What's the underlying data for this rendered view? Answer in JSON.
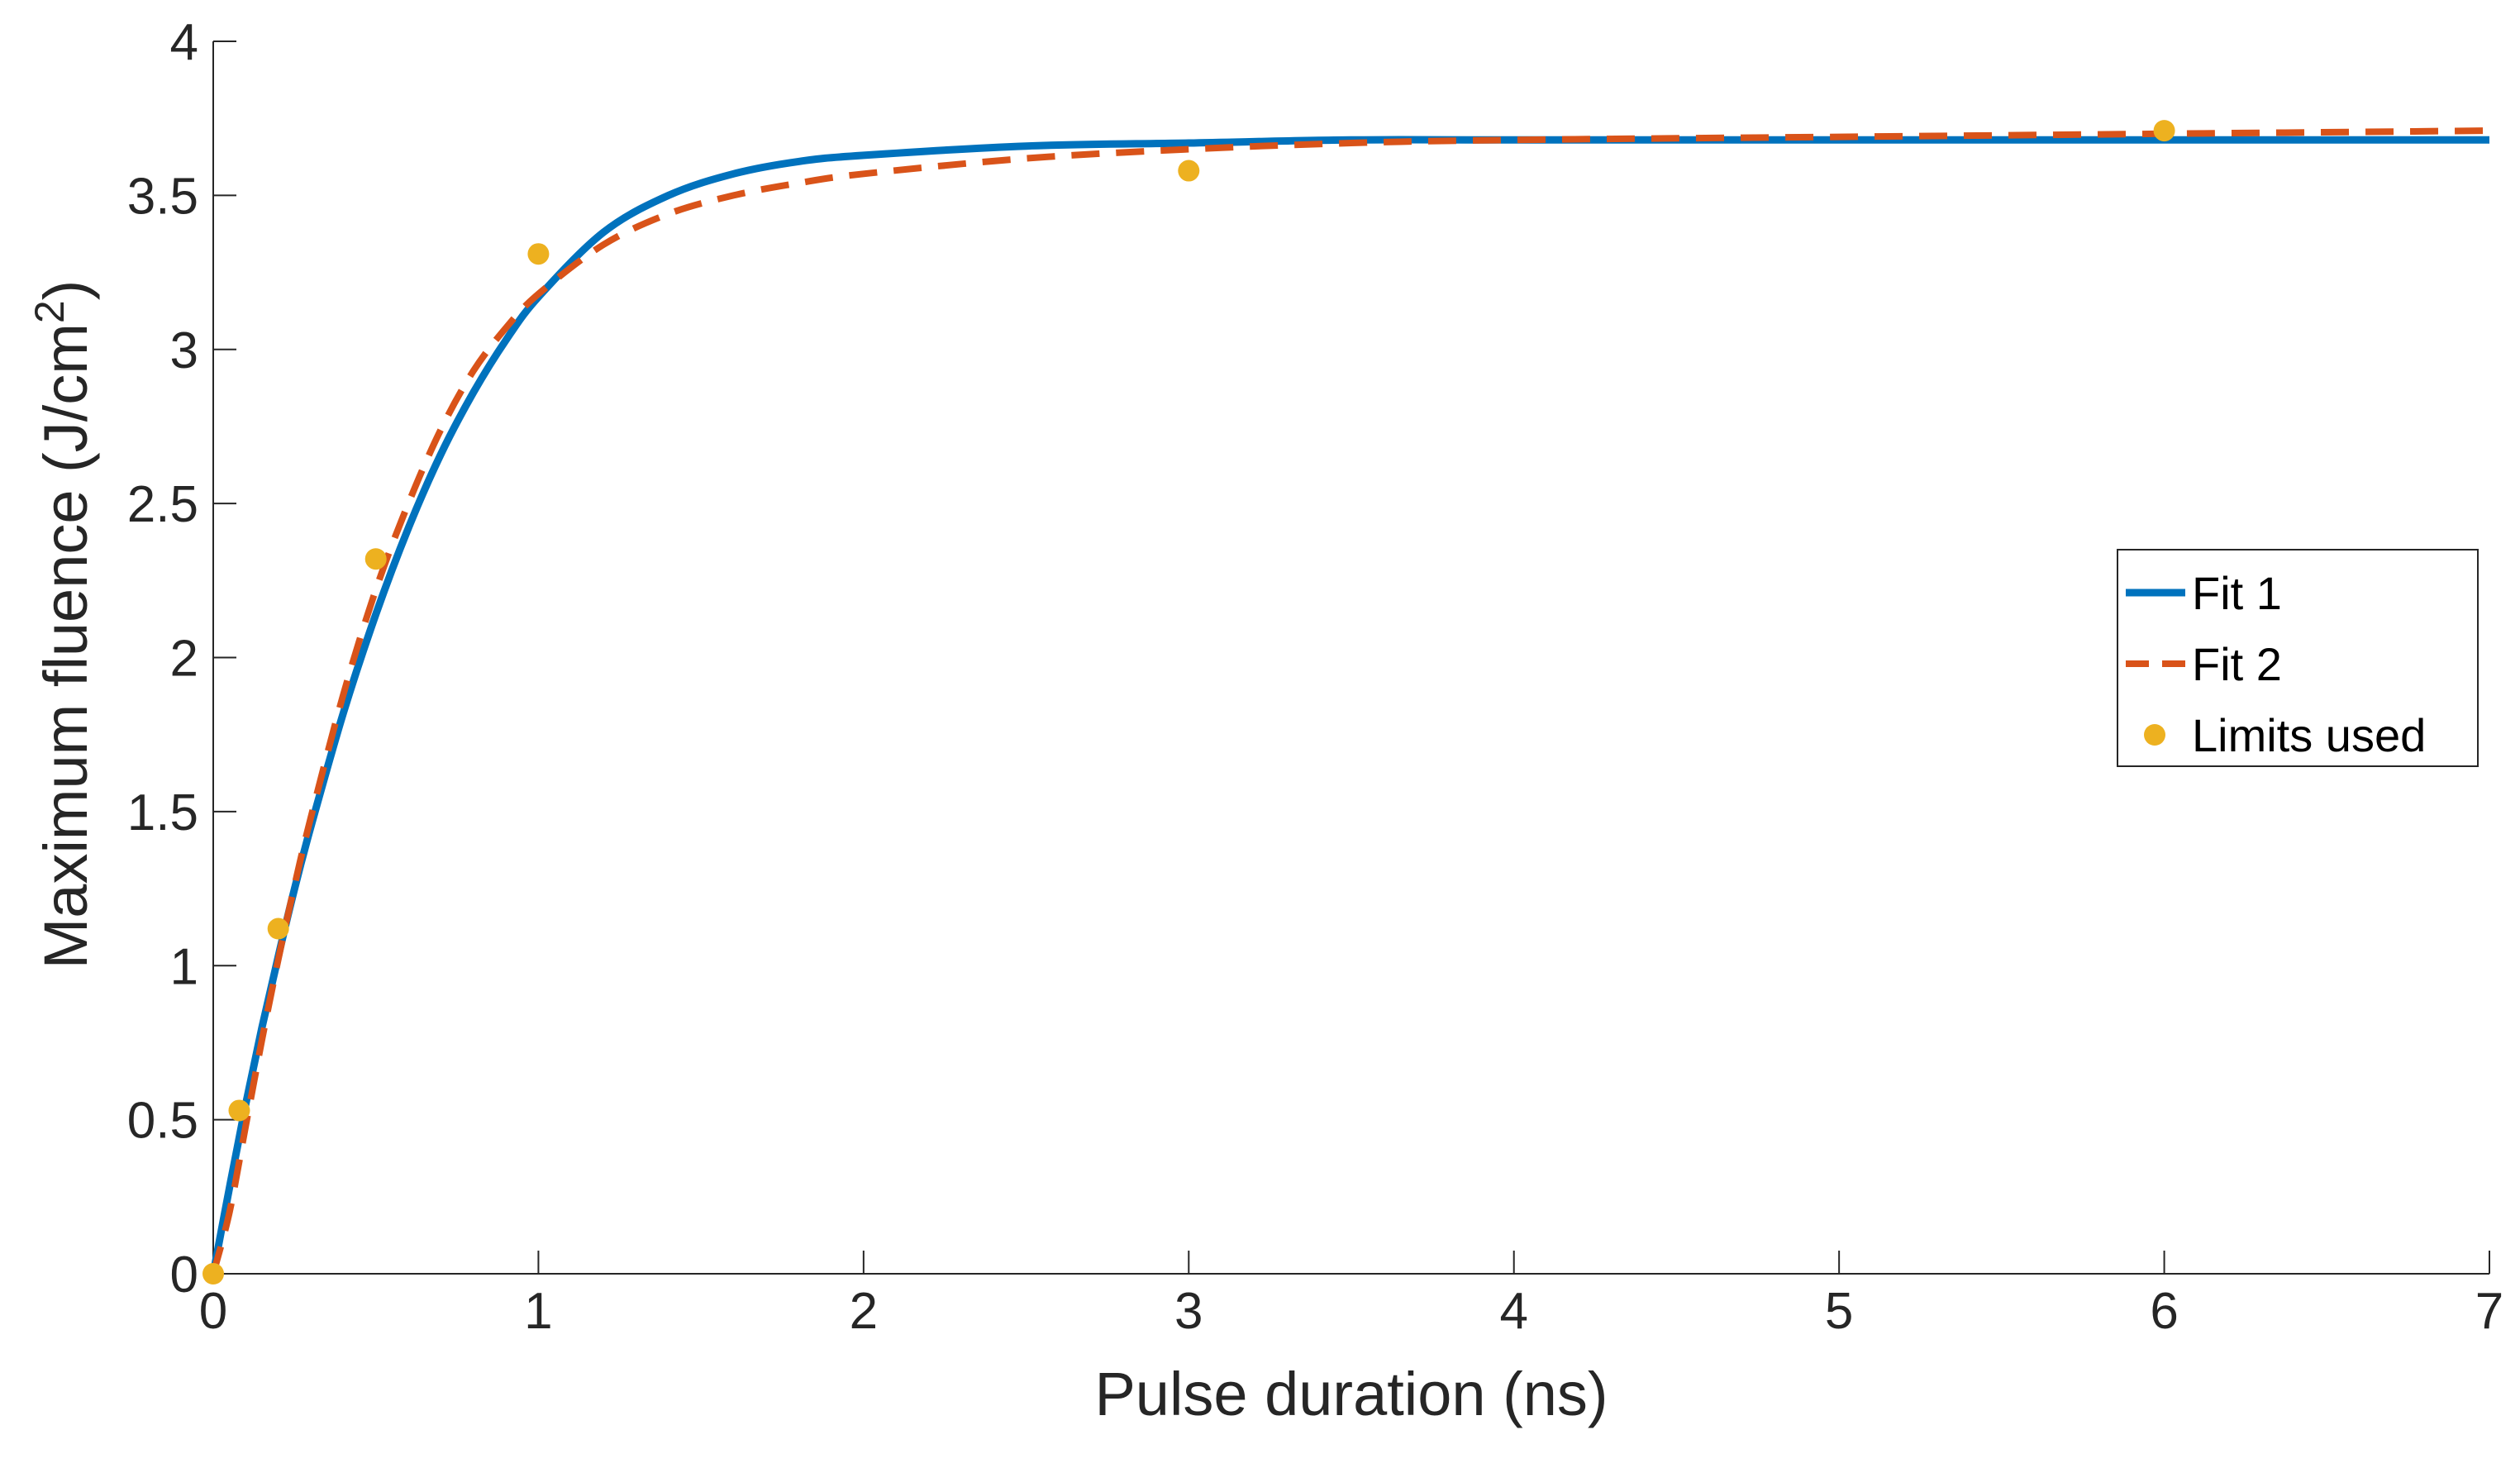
{
  "chart_data": {
    "type": "line",
    "title": "",
    "xlabel": "Pulse duration (ns)",
    "ylabel": "Maximum fluence (J/cm",
    "ylabel_superscript": "2",
    "ylabel_suffix": ")",
    "xlim": [
      0,
      7
    ],
    "ylim": [
      0,
      4
    ],
    "xticks": [
      0,
      1,
      2,
      3,
      4,
      5,
      6,
      7
    ],
    "xtick_labels": [
      "0",
      "1",
      "2",
      "3",
      "4",
      "5",
      "6",
      "7"
    ],
    "yticks": [
      0,
      0.5,
      1,
      1.5,
      2,
      2.5,
      3,
      3.5,
      4
    ],
    "ytick_labels": [
      "0",
      "0.5",
      "1",
      "1.5",
      "2",
      "2.5",
      "3",
      "3.5",
      "4"
    ],
    "grid": false,
    "legend_position": "right",
    "series": [
      {
        "name": "Fit 1",
        "style": "solid",
        "color": "#0072BD",
        "x": [
          0,
          0.05,
          0.1,
          0.15,
          0.2,
          0.25,
          0.3,
          0.4,
          0.5,
          0.6,
          0.7,
          0.8,
          0.9,
          1.0,
          1.2,
          1.4,
          1.6,
          1.8,
          2.0,
          2.5,
          3.0,
          3.5,
          4.0,
          5.0,
          6.0,
          7.0
        ],
        "values": [
          0,
          0.28,
          0.55,
          0.8,
          1.03,
          1.25,
          1.45,
          1.82,
          2.14,
          2.42,
          2.66,
          2.86,
          3.03,
          3.17,
          3.38,
          3.5,
          3.57,
          3.61,
          3.63,
          3.66,
          3.67,
          3.68,
          3.68,
          3.68,
          3.68,
          3.68
        ]
      },
      {
        "name": "Fit 2",
        "style": "dashed",
        "color": "#D95319",
        "x": [
          0,
          0.05,
          0.1,
          0.15,
          0.2,
          0.25,
          0.3,
          0.4,
          0.5,
          0.6,
          0.7,
          0.8,
          0.9,
          1.0,
          1.2,
          1.4,
          1.6,
          1.8,
          2.0,
          2.5,
          3.0,
          3.5,
          4.0,
          5.0,
          6.0,
          7.0
        ],
        "values": [
          0,
          0.2,
          0.48,
          0.76,
          1.02,
          1.26,
          1.48,
          1.88,
          2.22,
          2.5,
          2.74,
          2.93,
          3.07,
          3.18,
          3.34,
          3.44,
          3.5,
          3.54,
          3.57,
          3.62,
          3.65,
          3.67,
          3.68,
          3.69,
          3.7,
          3.71
        ]
      },
      {
        "name": "Limits used",
        "style": "markers",
        "color": "#EDB120",
        "x": [
          0,
          0.08,
          0.2,
          0.5,
          1.0,
          3.0,
          6.0
        ],
        "values": [
          0,
          0.53,
          1.12,
          2.32,
          3.31,
          3.58,
          3.71
        ]
      }
    ]
  }
}
